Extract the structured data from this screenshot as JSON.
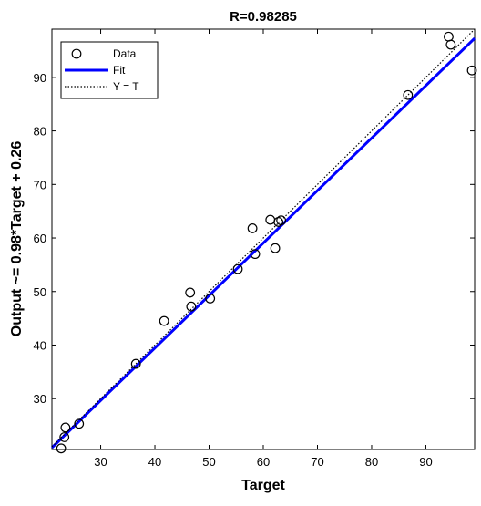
{
  "chart_data": {
    "type": "scatter",
    "title": "R=0.98285",
    "xlabel": "Target",
    "ylabel": "Output ~= 0.98*Target + 0.26",
    "xlim": [
      21,
      99
    ],
    "ylim": [
      20.5,
      99
    ],
    "xticks": [
      30,
      40,
      50,
      60,
      70,
      80,
      90
    ],
    "yticks": [
      30,
      40,
      50,
      60,
      70,
      80,
      90
    ],
    "grid": false,
    "legend": {
      "placement": "top-left",
      "entries": [
        "Data",
        "Fit",
        "Y = T"
      ]
    },
    "colors": {
      "data": "#000000",
      "fit": "#0000ff",
      "identity": "#000000"
    },
    "series": [
      {
        "name": "Data",
        "kind": "points",
        "points": [
          [
            22.7,
            20.7
          ],
          [
            23.3,
            22.8
          ],
          [
            23.5,
            24.6
          ],
          [
            26.0,
            25.3
          ],
          [
            36.5,
            36.5
          ],
          [
            41.7,
            44.5
          ],
          [
            46.5,
            49.8
          ],
          [
            46.7,
            47.2
          ],
          [
            50.2,
            48.7
          ],
          [
            55.3,
            54.2
          ],
          [
            58.0,
            61.8
          ],
          [
            58.5,
            57.0
          ],
          [
            61.3,
            63.4
          ],
          [
            62.2,
            58.1
          ],
          [
            62.8,
            63.0
          ],
          [
            63.3,
            63.3
          ],
          [
            86.7,
            86.7
          ],
          [
            94.2,
            97.6
          ],
          [
            94.6,
            96.1
          ],
          [
            98.5,
            91.3
          ]
        ]
      },
      {
        "name": "Fit",
        "kind": "line",
        "slope": 0.98,
        "intercept": 0.26
      },
      {
        "name": "Y = T",
        "kind": "line",
        "slope": 1,
        "intercept": 0
      }
    ]
  }
}
